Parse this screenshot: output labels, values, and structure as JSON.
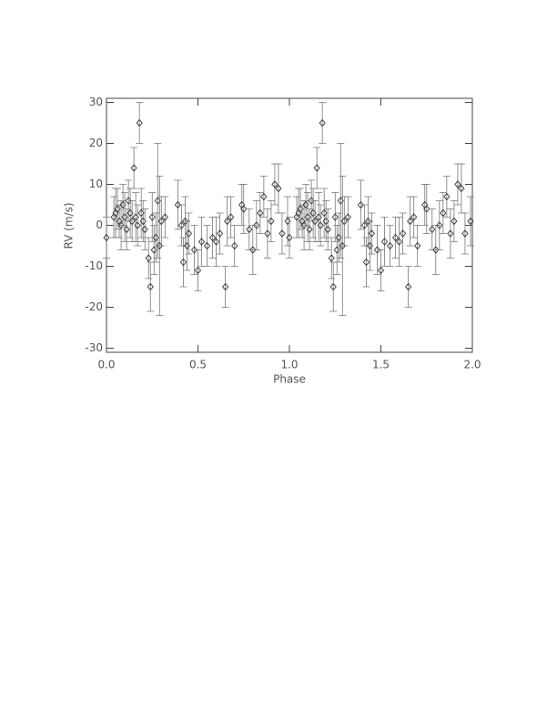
{
  "chart_data": {
    "type": "scatter",
    "xlabel": "Phase",
    "ylabel": "RV (m/s)",
    "xlim": [
      0,
      2
    ],
    "ylim": [
      -31,
      31
    ],
    "xticks": [
      {
        "value": 0,
        "label": "0.0"
      },
      {
        "value": 0.5,
        "label": "0.5"
      },
      {
        "value": 1,
        "label": "1.0"
      },
      {
        "value": 1.5,
        "label": "1.5"
      },
      {
        "value": 2,
        "label": "2.0"
      }
    ],
    "yticks": [
      -30,
      -20,
      -10,
      0,
      10,
      20,
      30
    ],
    "color": "#333333",
    "x": [
      0.0,
      0.04,
      0.05,
      0.06,
      0.07,
      0.08,
      0.09,
      0.1,
      0.11,
      0.12,
      0.13,
      0.14,
      0.15,
      0.16,
      0.17,
      0.18,
      0.19,
      0.2,
      0.21,
      0.23,
      0.24,
      0.25,
      0.26,
      0.27,
      0.28,
      0.29,
      0.3,
      0.32,
      0.39,
      0.41,
      0.42,
      0.43,
      0.44,
      0.45,
      0.48,
      0.5,
      0.52,
      0.55,
      0.58,
      0.6,
      0.62,
      0.65,
      0.66,
      0.68,
      0.7,
      0.74,
      0.75,
      0.78,
      0.8,
      0.82,
      0.84,
      0.86,
      0.88,
      0.9,
      0.92,
      0.94,
      0.96,
      0.99,
      1.0,
      1.04,
      1.05,
      1.06,
      1.07,
      1.08,
      1.09,
      1.1,
      1.11,
      1.12,
      1.13,
      1.14,
      1.15,
      1.16,
      1.17,
      1.18,
      1.19,
      1.2,
      1.21,
      1.23,
      1.24,
      1.25,
      1.26,
      1.27,
      1.28,
      1.29,
      1.3,
      1.32,
      1.39,
      1.41,
      1.42,
      1.43,
      1.44,
      1.45,
      1.48,
      1.5,
      1.52,
      1.55,
      1.58,
      1.6,
      1.62,
      1.65,
      1.66,
      1.68,
      1.7,
      1.74,
      1.75,
      1.78,
      1.8,
      1.82,
      1.84,
      1.86,
      1.88,
      1.9,
      1.92,
      1.94,
      1.96,
      1.99
    ],
    "values": [
      -3,
      2,
      3,
      4,
      1,
      0,
      5,
      2,
      -1,
      6,
      3,
      1,
      14,
      2,
      0,
      25,
      3,
      1,
      -1,
      -8,
      -15,
      2,
      -6,
      -3,
      6,
      -5,
      1,
      2,
      5,
      0,
      -9,
      1,
      -5,
      -2,
      -6,
      -11,
      -4,
      -5,
      -3,
      -4,
      -2,
      -15,
      1,
      2,
      -5,
      5,
      4,
      -1,
      -6,
      0,
      3,
      7,
      -2,
      1,
      10,
      9,
      -2,
      1,
      -3,
      2,
      3,
      4,
      1,
      0,
      5,
      2,
      -1,
      6,
      3,
      1,
      14,
      2,
      0,
      25,
      3,
      1,
      -1,
      -8,
      -15,
      2,
      -6,
      -3,
      6,
      -5,
      1,
      2,
      5,
      0,
      -9,
      1,
      -5,
      -2,
      -6,
      -11,
      -4,
      -5,
      -3,
      -4,
      -2,
      -15,
      1,
      2,
      -5,
      5,
      4,
      -1,
      -6,
      0,
      3,
      7,
      -2,
      1,
      10,
      9,
      -2,
      1
    ],
    "errors": [
      5,
      5,
      6,
      5,
      4,
      6,
      5,
      6,
      5,
      5,
      6,
      5,
      5,
      6,
      5,
      5,
      6,
      5,
      5,
      5,
      6,
      6,
      6,
      6,
      14,
      17,
      6,
      5,
      6,
      5,
      6,
      6,
      6,
      5,
      6,
      5,
      6,
      5,
      5,
      6,
      5,
      5,
      6,
      5,
      5,
      5,
      6,
      5,
      6,
      6,
      5,
      5,
      6,
      5,
      5,
      6,
      5,
      6,
      5,
      5,
      6,
      5,
      4,
      6,
      5,
      6,
      5,
      5,
      6,
      5,
      5,
      6,
      5,
      5,
      6,
      5,
      5,
      5,
      6,
      6,
      6,
      6,
      14,
      17,
      6,
      5,
      6,
      5,
      6,
      6,
      6,
      5,
      6,
      5,
      6,
      5,
      5,
      6,
      5,
      5,
      6,
      5,
      5,
      5,
      6,
      5,
      6,
      6,
      5,
      5,
      6,
      5,
      5,
      6,
      5,
      6
    ]
  }
}
